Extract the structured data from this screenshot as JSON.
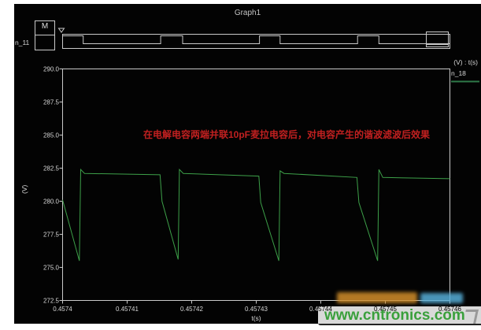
{
  "window": {
    "title": "Graph1"
  },
  "marker_box": {
    "label": "M"
  },
  "digital_lane": {
    "name": "n_11"
  },
  "legend": {
    "axis_label": "(V) : t(s)",
    "trace_name": "n_18"
  },
  "axes": {
    "ylabel": "(V)",
    "xlabel": "t(s)",
    "y_ticks": [
      "290.0",
      "287.5",
      "285.0",
      "282.5",
      "280.0",
      "277.5",
      "275.0",
      "272.5"
    ],
    "x_ticks": [
      "0.4574",
      "0.45741",
      "0.45742",
      "0.45743",
      "0.45744",
      "0.45745",
      "0.45746"
    ]
  },
  "annotation": {
    "text": "在电解电容两端并联10pF麦拉电容后，对电容产生的谐波滤波后效果"
  },
  "watermark": {
    "text": "www.cntronics.com"
  },
  "colors": {
    "panel_bg": "#030303",
    "frame": "#c9c9c9",
    "trace_green": "#3da049",
    "legend_line": "#2f7a48",
    "annotation_red": "#c12020",
    "watermark_green": "#3aa03c",
    "logo_orange": "#d28e2a",
    "logo_blue": "#56aed8"
  },
  "chart_data": {
    "type": "line",
    "title": "Graph1",
    "xlabel": "t(s)",
    "ylabel": "(V)",
    "xlim": [
      0.4574,
      0.45746
    ],
    "ylim": [
      272.5,
      290.0
    ],
    "x_tick_step_s": 1e-05,
    "span_us": 60,
    "t0_s": 0.4574,
    "grid": false,
    "legend_position": "top-right",
    "series": [
      {
        "name": "n_18",
        "kind": "analog-voltage",
        "units": "V",
        "comment": "time given as microsecond offset from t0_s; periodic discharge ramps synced to n_11 pulses",
        "points_us_v": [
          [
            0.0,
            280.1
          ],
          [
            2.6,
            275.5
          ],
          [
            2.8,
            282.4
          ],
          [
            3.4,
            282.1
          ],
          [
            15.1,
            282.0
          ],
          [
            15.4,
            280.0
          ],
          [
            17.9,
            275.6
          ],
          [
            18.1,
            282.4
          ],
          [
            18.7,
            282.1
          ],
          [
            30.4,
            281.9
          ],
          [
            30.7,
            279.9
          ],
          [
            33.5,
            275.5
          ],
          [
            33.7,
            282.3
          ],
          [
            34.3,
            282.1
          ],
          [
            45.6,
            281.8
          ],
          [
            45.9,
            279.9
          ],
          [
            48.8,
            275.5
          ],
          [
            49.0,
            282.4
          ],
          [
            49.6,
            281.8
          ],
          [
            60.0,
            281.7
          ]
        ]
      },
      {
        "name": "n_11",
        "kind": "digital-pulse",
        "comment": "high intervals as microsecond offsets from t0_s",
        "high_intervals_us": [
          [
            0.0,
            3.2
          ],
          [
            15.2,
            18.6
          ],
          [
            30.5,
            33.7
          ],
          [
            45.7,
            49.0
          ]
        ]
      }
    ]
  }
}
